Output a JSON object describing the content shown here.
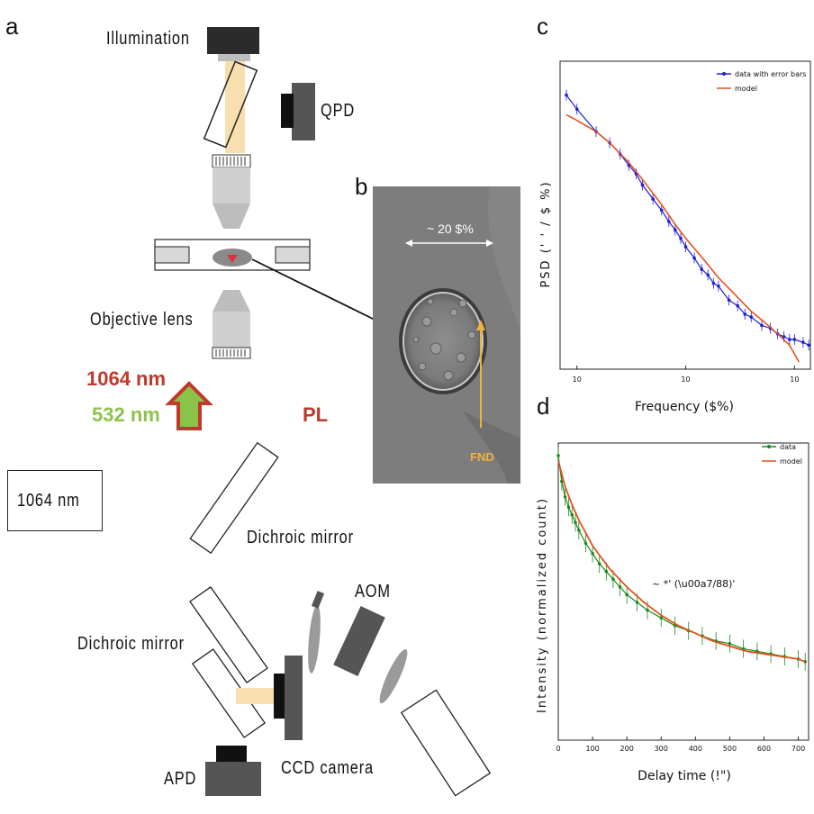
{
  "panel_a": {
    "letter": "a",
    "illumination_label": "Illumination",
    "qpd_label": "QPD",
    "objective_label": "Objective lens",
    "wavelength_1064": "1064 nm",
    "wavelength_532": "532 nm",
    "pl_label": "PL",
    "laser_box_label": "1064 nm",
    "dichroic_label_1": "Dichroic mirror",
    "dichroic_label_2": "Dichroic mirror",
    "aom_label": "AOM",
    "apd_label": "APD",
    "ccd_label": "CCD camera",
    "colors": {
      "beam": "#f7dfb0",
      "dark_device": "#555555",
      "red_text": "#c0392b",
      "green_text": "#8bc34a"
    }
  },
  "panel_b": {
    "letter": "b",
    "scale_label": "~ 20 $%",
    "fnd_label": "FND",
    "colors": {
      "arrow": "#f0b23c"
    }
  },
  "chart_data": [
    {
      "panel": "c",
      "type": "line",
      "xlabel": "Frequency ($%)",
      "ylabel": "PSD (' ' / $ %)",
      "x_scale": "log",
      "y_scale": "log",
      "xlim": [
        7,
        1400
      ],
      "x_ticks": [
        "10",
        "10",
        "10"
      ],
      "legend": "top-right",
      "series": [
        {
          "name": "data with error bars",
          "color": "#1f1fd6",
          "x": [
            8,
            10,
            15,
            20,
            25,
            30,
            35,
            40,
            50,
            60,
            70,
            80,
            90,
            100,
            120,
            140,
            160,
            180,
            200,
            250,
            300,
            350,
            400,
            500,
            600,
            700,
            800,
            900,
            1000,
            1200,
            1350
          ],
          "y": [
            0.95,
            0.9,
            0.82,
            0.78,
            0.74,
            0.7,
            0.67,
            0.63,
            0.58,
            0.54,
            0.5,
            0.47,
            0.44,
            0.41,
            0.37,
            0.33,
            0.31,
            0.28,
            0.27,
            0.22,
            0.2,
            0.17,
            0.16,
            0.13,
            0.12,
            0.1,
            0.09,
            0.08,
            0.08,
            0.07,
            0.06
          ]
        },
        {
          "name": "model",
          "color": "#e8501e",
          "x": [
            8,
            10,
            15,
            20,
            30,
            40,
            60,
            80,
            100,
            150,
            200,
            300,
            400,
            500,
            700,
            900,
            1100
          ],
          "y": [
            0.88,
            0.86,
            0.82,
            0.78,
            0.71,
            0.65,
            0.56,
            0.49,
            0.44,
            0.36,
            0.3,
            0.23,
            0.18,
            0.15,
            0.1,
            0.06,
            0.0
          ]
        }
      ]
    },
    {
      "panel": "d",
      "type": "line",
      "xlabel": "Delay time (!\")",
      "ylabel": "Intensity (normalized count)",
      "xlim": [
        0,
        730
      ],
      "x_ticks": [
        0,
        100,
        200,
        300,
        400,
        500,
        600,
        700
      ],
      "annotation": "~ *' (\\u00a7/88)'",
      "legend": "top-right",
      "series": [
        {
          "name": "data",
          "color": "#1f8a1f",
          "x": [
            0,
            10,
            20,
            30,
            40,
            50,
            60,
            80,
            100,
            120,
            140,
            160,
            180,
            200,
            230,
            260,
            300,
            340,
            380,
            420,
            460,
            500,
            540,
            580,
            620,
            660,
            700,
            720
          ],
          "y": [
            1.0,
            0.9,
            0.84,
            0.8,
            0.77,
            0.74,
            0.71,
            0.66,
            0.62,
            0.58,
            0.55,
            0.52,
            0.49,
            0.46,
            0.43,
            0.4,
            0.37,
            0.34,
            0.32,
            0.3,
            0.28,
            0.27,
            0.25,
            0.24,
            0.23,
            0.22,
            0.21,
            0.2
          ]
        },
        {
          "name": "model",
          "color": "#e8501e",
          "x": [
            0,
            20,
            40,
            60,
            80,
            100,
            150,
            200,
            250,
            300,
            350,
            400,
            450,
            500,
            550,
            600,
            650,
            700,
            720
          ],
          "y": [
            0.98,
            0.88,
            0.81,
            0.75,
            0.7,
            0.65,
            0.56,
            0.49,
            0.43,
            0.38,
            0.34,
            0.31,
            0.28,
            0.26,
            0.24,
            0.23,
            0.22,
            0.21,
            0.2
          ]
        }
      ]
    }
  ],
  "panel_c": {
    "letter": "c"
  },
  "panel_d": {
    "letter": "d"
  }
}
